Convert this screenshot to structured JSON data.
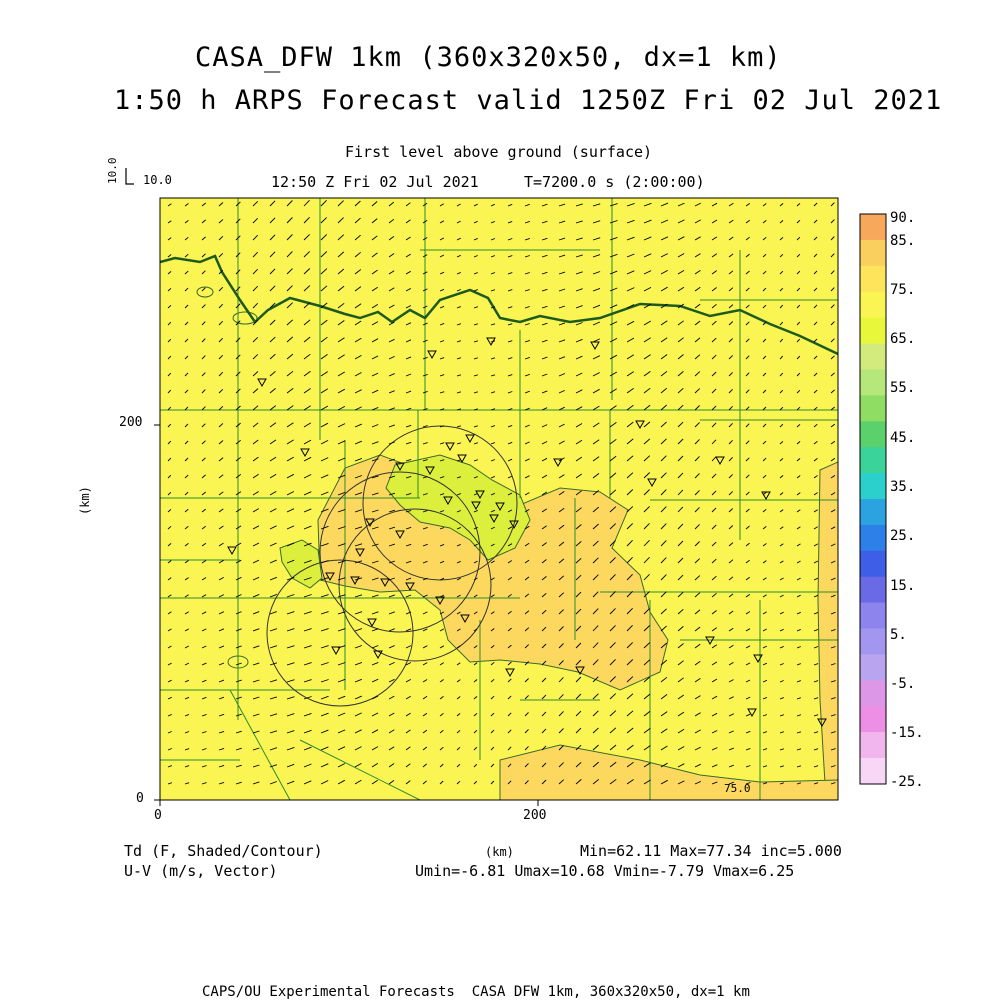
{
  "header": {
    "title_line1": "CASA_DFW 1km (360x320x50, dx=1 km)",
    "title_line2": "1:50 h ARPS Forecast valid 1250Z Fri 02 Jul 2021",
    "level": "First level above ground (surface)",
    "valid_time": "12:50 Z Fri 02 Jul 2021",
    "time_step": "T=7200.0 s (2:00:00)"
  },
  "vector_ref": {
    "rotated": "10.0",
    "label": "10.0"
  },
  "axes": {
    "x_ticks": [
      "0",
      "200"
    ],
    "y_ticks": [
      "0",
      "200"
    ],
    "y_unit": "(km)",
    "x_unit": "(km)"
  },
  "footer": {
    "field1": "Td (F, Shaded/Contour)",
    "field2": "U-V (m/s, Vector)",
    "stats1": "Min=62.11 Max=77.34 inc=5.000",
    "stats2": "Umin=-6.81 Umax=10.68 Vmin=-7.79 Vmax=6.25",
    "contour_label": "75.0",
    "credit": "CAPS/OU Experimental Forecasts  CASA DFW 1km, 360x320x50, dx=1 km"
  },
  "colorbar": {
    "labels": [
      "90.",
      "85.",
      "75.",
      "65.",
      "55.",
      "45.",
      "35.",
      "25.",
      "15.",
      "5.",
      "-5.",
      "-15.",
      "-25."
    ],
    "colors": [
      "#f7a85a",
      "#fbcf5e",
      "#fde45a",
      "#fbf554",
      "#e9f73a",
      "#d3eb7c",
      "#b6e77a",
      "#8fde63",
      "#5bd16b",
      "#3ad39a",
      "#2bcfcc",
      "#2aa3e0",
      "#2c80e8",
      "#3f5ee8",
      "#6a6ae6",
      "#8d84ee",
      "#a396f0",
      "#b9a4ef",
      "#dc98e6",
      "#ee8fe6",
      "#f2b6ef",
      "#f8d6f6"
    ]
  },
  "map_colors": {
    "base_fill": "#fbf554",
    "warm_fill": "#fcd95e",
    "hot_fill": "#f6b55f",
    "moist_fill": "#dcef3c",
    "county_line": "#2d8a2d",
    "river_line": "#1d5a1d"
  }
}
